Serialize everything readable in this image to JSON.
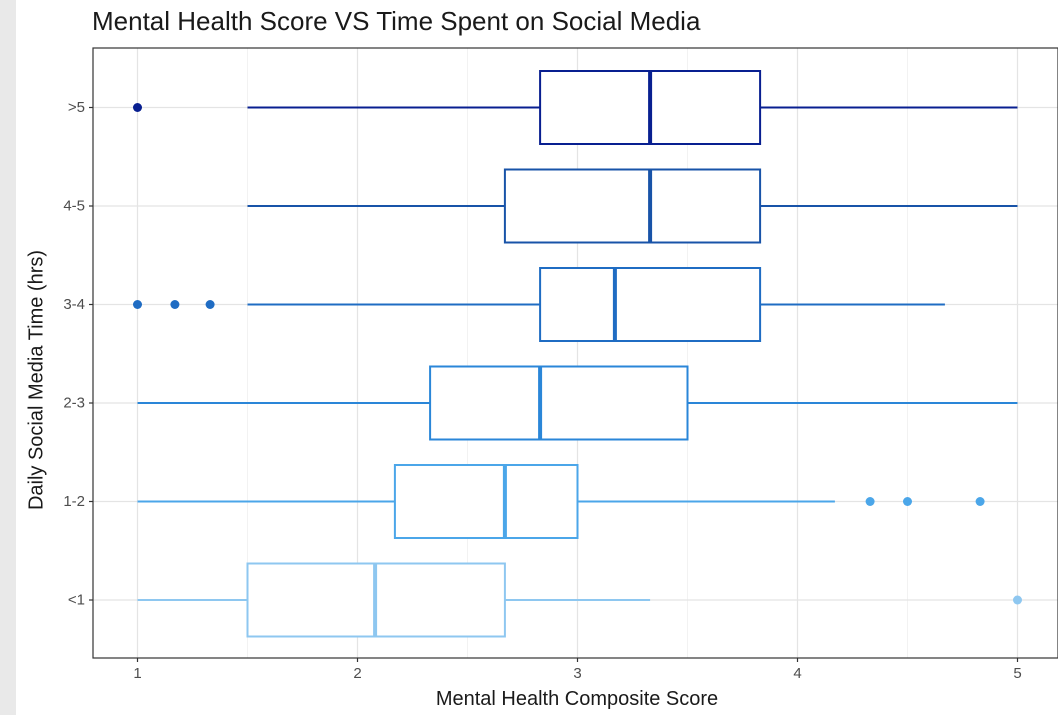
{
  "chart_data": {
    "type": "boxplot",
    "title": "Mental Health Score VS Time Spent on Social Media",
    "xlabel": "Mental Health Composite Score",
    "ylabel": "Daily Social Media Time (hrs)",
    "xlim": [
      0.8,
      5.2
    ],
    "xticks": [
      "1",
      "2",
      "3",
      "4",
      "5"
    ],
    "grid": true,
    "categories": [
      "<1",
      "1-2",
      "2-3",
      "3-4",
      "4-5",
      ">5"
    ],
    "boxes": [
      {
        "category": "<1",
        "color": "#8ec7f0",
        "whisker_low": 1.0,
        "q1": 1.5,
        "median": 2.08,
        "q3": 2.67,
        "whisker_high": 3.33,
        "outliers": [
          5.0
        ]
      },
      {
        "category": "1-2",
        "color": "#4ba6e9",
        "whisker_low": 1.0,
        "q1": 2.17,
        "median": 2.67,
        "q3": 3.0,
        "whisker_high": 4.17,
        "outliers": [
          4.33,
          4.5,
          4.83
        ]
      },
      {
        "category": "2-3",
        "color": "#2a86d8",
        "whisker_low": 1.0,
        "q1": 2.33,
        "median": 2.83,
        "q3": 3.5,
        "whisker_high": 5.0,
        "outliers": []
      },
      {
        "category": "3-4",
        "color": "#1f6cc3",
        "whisker_low": 1.5,
        "q1": 2.83,
        "median": 3.17,
        "q3": 3.83,
        "whisker_high": 4.67,
        "outliers": [
          1.0,
          1.17,
          1.33
        ]
      },
      {
        "category": "4-5",
        "color": "#1853a8",
        "whisker_low": 1.5,
        "q1": 2.67,
        "median": 3.33,
        "q3": 3.83,
        "whisker_high": 5.0,
        "outliers": []
      },
      {
        "category": ">5",
        "color": "#081f90",
        "whisker_low": 1.5,
        "q1": 2.83,
        "median": 3.33,
        "q3": 3.83,
        "whisker_high": 5.0,
        "outliers": [
          1.0
        ]
      }
    ]
  }
}
